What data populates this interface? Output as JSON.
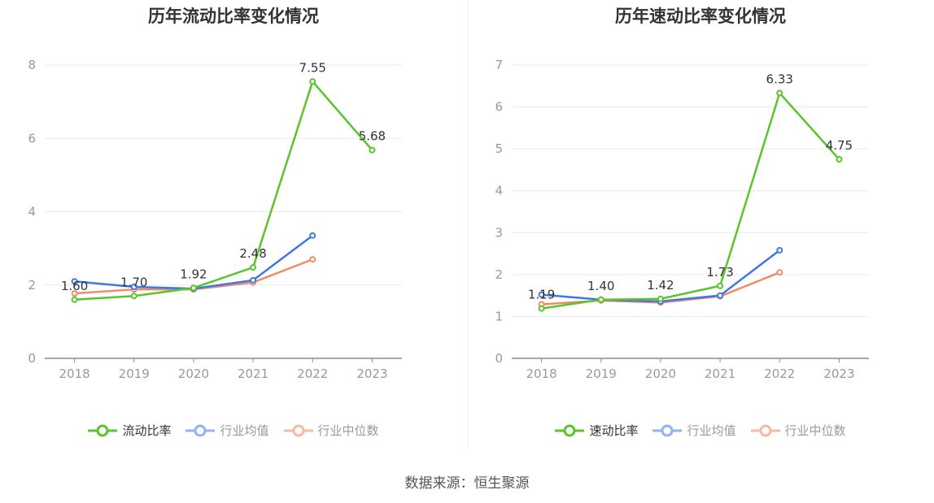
{
  "chart_data": [
    {
      "type": "line",
      "title": "历年流动比率变化情况",
      "x": [
        "2018",
        "2019",
        "2020",
        "2021",
        "2022",
        "2023"
      ],
      "ylim": [
        0,
        8
      ],
      "yticks": [
        "0",
        "2",
        "4",
        "6",
        "8"
      ],
      "grid": true,
      "legend_position": "bottom",
      "series": [
        {
          "name": "流动比率",
          "color": "#5ac42a",
          "values": [
            1.6,
            1.7,
            1.92,
            2.48,
            7.55,
            5.68
          ],
          "labels": [
            "1.60",
            "1.70",
            "1.92",
            "2.48",
            "7.55",
            "5.68"
          ]
        },
        {
          "name": "行业均值",
          "color": "#3f78e0",
          "values": [
            2.1,
            1.95,
            1.9,
            2.13,
            3.35,
            null
          ]
        },
        {
          "name": "行业中位数",
          "color": "#f08b68",
          "values": [
            1.77,
            1.88,
            1.88,
            2.07,
            2.7,
            null
          ]
        }
      ]
    },
    {
      "type": "line",
      "title": "历年速动比率变化情况",
      "x": [
        "2018",
        "2019",
        "2020",
        "2021",
        "2022",
        "2023"
      ],
      "ylim": [
        0,
        7
      ],
      "yticks": [
        "0",
        "1",
        "2",
        "3",
        "4",
        "5",
        "6",
        "7"
      ],
      "grid": true,
      "legend_position": "bottom",
      "series": [
        {
          "name": "速动比率",
          "color": "#5ac42a",
          "values": [
            1.19,
            1.4,
            1.42,
            1.73,
            6.33,
            4.75
          ],
          "labels": [
            "1.19",
            "1.40",
            "1.42",
            "1.73",
            "6.33",
            "4.75"
          ]
        },
        {
          "name": "行业均值",
          "color": "#3f78e0",
          "values": [
            1.52,
            1.4,
            1.36,
            1.5,
            2.58,
            null
          ]
        },
        {
          "name": "行业中位数",
          "color": "#f08b68",
          "values": [
            1.29,
            1.38,
            1.33,
            1.48,
            2.05,
            null
          ]
        }
      ]
    }
  ],
  "legend_symbol_colors": [
    "#5ac42a",
    "#91b3f0",
    "#f7b8a2"
  ],
  "footer": {
    "source": "数据来源：恒生聚源"
  }
}
